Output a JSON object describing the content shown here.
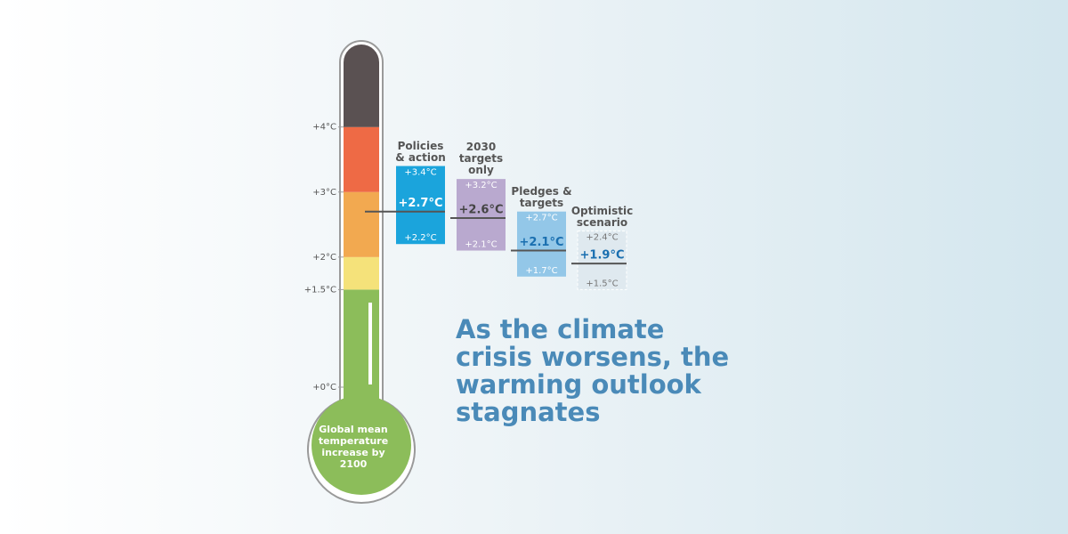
{
  "chart_data": {
    "type": "range",
    "title": "As the climate crisis worsens, the warming outlook stagnates",
    "axis_label": "Global mean temperature increase by 2100",
    "ylim": [
      0,
      5.2
    ],
    "yticks": [
      {
        "value": 0,
        "label": "+0°C"
      },
      {
        "value": 1.5,
        "label": "+1.5°C"
      },
      {
        "value": 2,
        "label": "+2°C"
      },
      {
        "value": 3,
        "label": "+3°C"
      },
      {
        "value": 4,
        "label": "+4°C"
      }
    ],
    "band_colors": [
      "#8cbd5a",
      "#f5e27a",
      "#f2a950",
      "#ee6a45",
      "#5a5152"
    ],
    "series": [
      {
        "name": "Policies & action",
        "color": "#1ba4dc",
        "text_color": "#ffffff",
        "values": [
          2.2,
          2.7,
          3.4
        ],
        "value_labels": [
          "+2.2°C",
          "+2.7°C",
          "+3.4°C"
        ]
      },
      {
        "name": "2030 targets only",
        "color": "#b9a9cf",
        "text_color": "#444444",
        "values": [
          2.1,
          2.6,
          3.2
        ],
        "value_labels": [
          "+2.1°C",
          "+2.6°C",
          "+3.2°C"
        ]
      },
      {
        "name": "Pledges & targets",
        "color": "#93c7e8",
        "text_color": "#1a6fb0",
        "values": [
          1.7,
          2.1,
          2.7
        ],
        "value_labels": [
          "+1.7°C",
          "+2.1°C",
          "+2.7°C"
        ]
      },
      {
        "name": "Optimistic scenario",
        "color": "#dfe9ef",
        "text_color": "#1a6fb0",
        "values": [
          1.5,
          1.9,
          2.4
        ],
        "value_labels": [
          "+1.5°C",
          "+1.9°C",
          "+2.4°C"
        ]
      }
    ]
  }
}
